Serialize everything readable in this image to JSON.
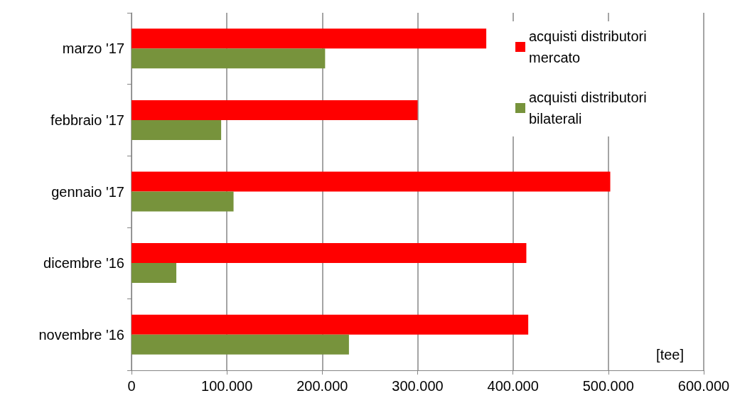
{
  "chart_data": {
    "type": "bar",
    "orientation": "horizontal",
    "categories": [
      "marzo '17",
      "febbraio '17",
      "gennaio '17",
      "dicembre '16",
      "novembre '16"
    ],
    "series": [
      {
        "name": "acquisti distributori mercato",
        "color": "#ff0000",
        "values": [
          372000,
          300000,
          502000,
          414000,
          416000
        ]
      },
      {
        "name": "acquisti distributori bilaterali",
        "color": "#77933c",
        "values": [
          203000,
          94000,
          107000,
          47000,
          228000
        ]
      }
    ],
    "xlim": [
      0,
      600000
    ],
    "xticks": [
      0,
      {
        "value": 100000,
        "label": "100.000"
      },
      {
        "value": 200000,
        "label": "200.000"
      },
      {
        "value": 300000,
        "label": "300.000"
      },
      {
        "value": 400000,
        "label": "400.000"
      },
      {
        "value": 500000,
        "label": "500.000"
      },
      {
        "value": 600000,
        "label": "600.000"
      }
    ],
    "grid": "x",
    "legend": "top right",
    "annotations": [
      "[tee]"
    ]
  }
}
